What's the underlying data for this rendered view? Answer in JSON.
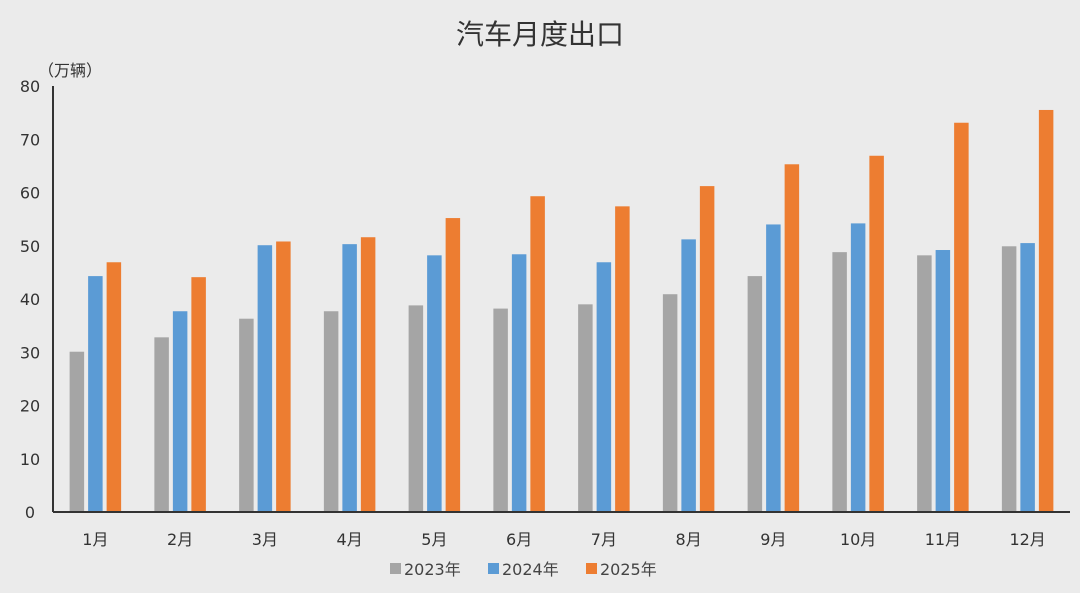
{
  "chart_data": {
    "type": "bar",
    "title": "汽车月度出口",
    "ylabel": "（万辆）",
    "xlabel": "",
    "ylim": [
      0,
      80
    ],
    "yticks": [
      0,
      10,
      20,
      30,
      40,
      50,
      60,
      70,
      80
    ],
    "grid": false,
    "legend_position": "bottom",
    "categories": [
      "1月",
      "2月",
      "3月",
      "4月",
      "5月",
      "6月",
      "7月",
      "8月",
      "9月",
      "10月",
      "11月",
      "12月"
    ],
    "series": [
      {
        "name": "2023年",
        "color": "#a5a5a5",
        "values": [
          30.1,
          32.8,
          36.3,
          37.7,
          38.8,
          38.2,
          39.0,
          40.9,
          44.3,
          48.8,
          48.2,
          49.9
        ]
      },
      {
        "name": "2024年",
        "color": "#5b9bd5",
        "values": [
          44.3,
          37.7,
          50.1,
          50.3,
          48.2,
          48.4,
          46.9,
          51.2,
          54.0,
          54.2,
          49.2,
          50.5
        ]
      },
      {
        "name": "2025年",
        "color": "#ed7d31",
        "values": [
          46.9,
          44.1,
          50.8,
          51.6,
          55.2,
          59.3,
          57.4,
          61.2,
          65.3,
          66.9,
          73.1,
          75.5
        ]
      }
    ]
  }
}
